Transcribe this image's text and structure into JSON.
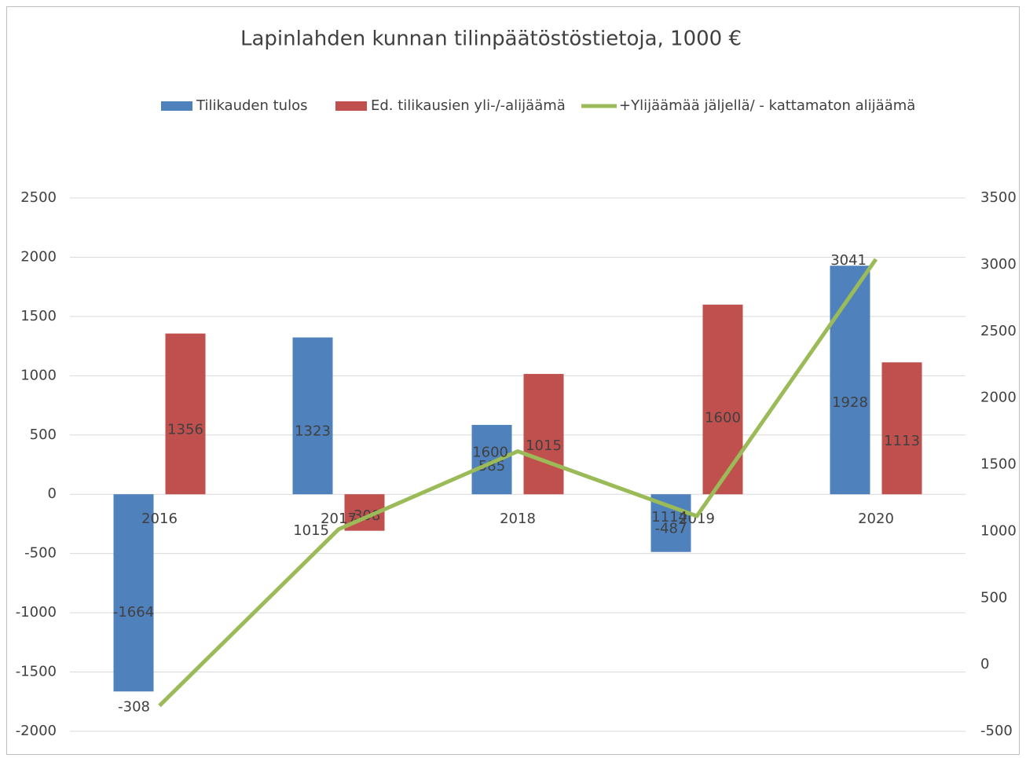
{
  "chart_data": {
    "type": "bar_line",
    "title": "Lapinlahden kunnan tilinpäätöstöstietoja, 1000 €",
    "categories": [
      "2016",
      "2017",
      "2018",
      "2019",
      "2020"
    ],
    "series": [
      {
        "name": "Tilikauden tulos",
        "type": "bar",
        "color": "#4f81bd",
        "values": [
          -1664,
          1323,
          585,
          -487,
          1928
        ]
      },
      {
        "name": "Ed. tilikausien yli-/-alijäämä",
        "type": "bar",
        "color": "#c0504d",
        "values": [
          1356,
          -308,
          1015,
          1600,
          1113
        ]
      },
      {
        "name": "+Ylijäämää jäljellä/ - kattamaton alijäämä",
        "type": "line",
        "axis": "y2",
        "color": "#9bbb59",
        "values": [
          -308,
          1015,
          1600,
          1114,
          3041
        ]
      }
    ],
    "ylim": [
      -2000,
      2500
    ],
    "yticks": [
      -2000,
      -1500,
      -1000,
      -500,
      0,
      500,
      1000,
      1500,
      2000,
      2500
    ],
    "y2lim": [
      -500,
      3500
    ],
    "y2ticks": [
      -500,
      0,
      500,
      1000,
      1500,
      2000,
      2500,
      3000,
      3500
    ],
    "grid": true,
    "legend": "top"
  }
}
